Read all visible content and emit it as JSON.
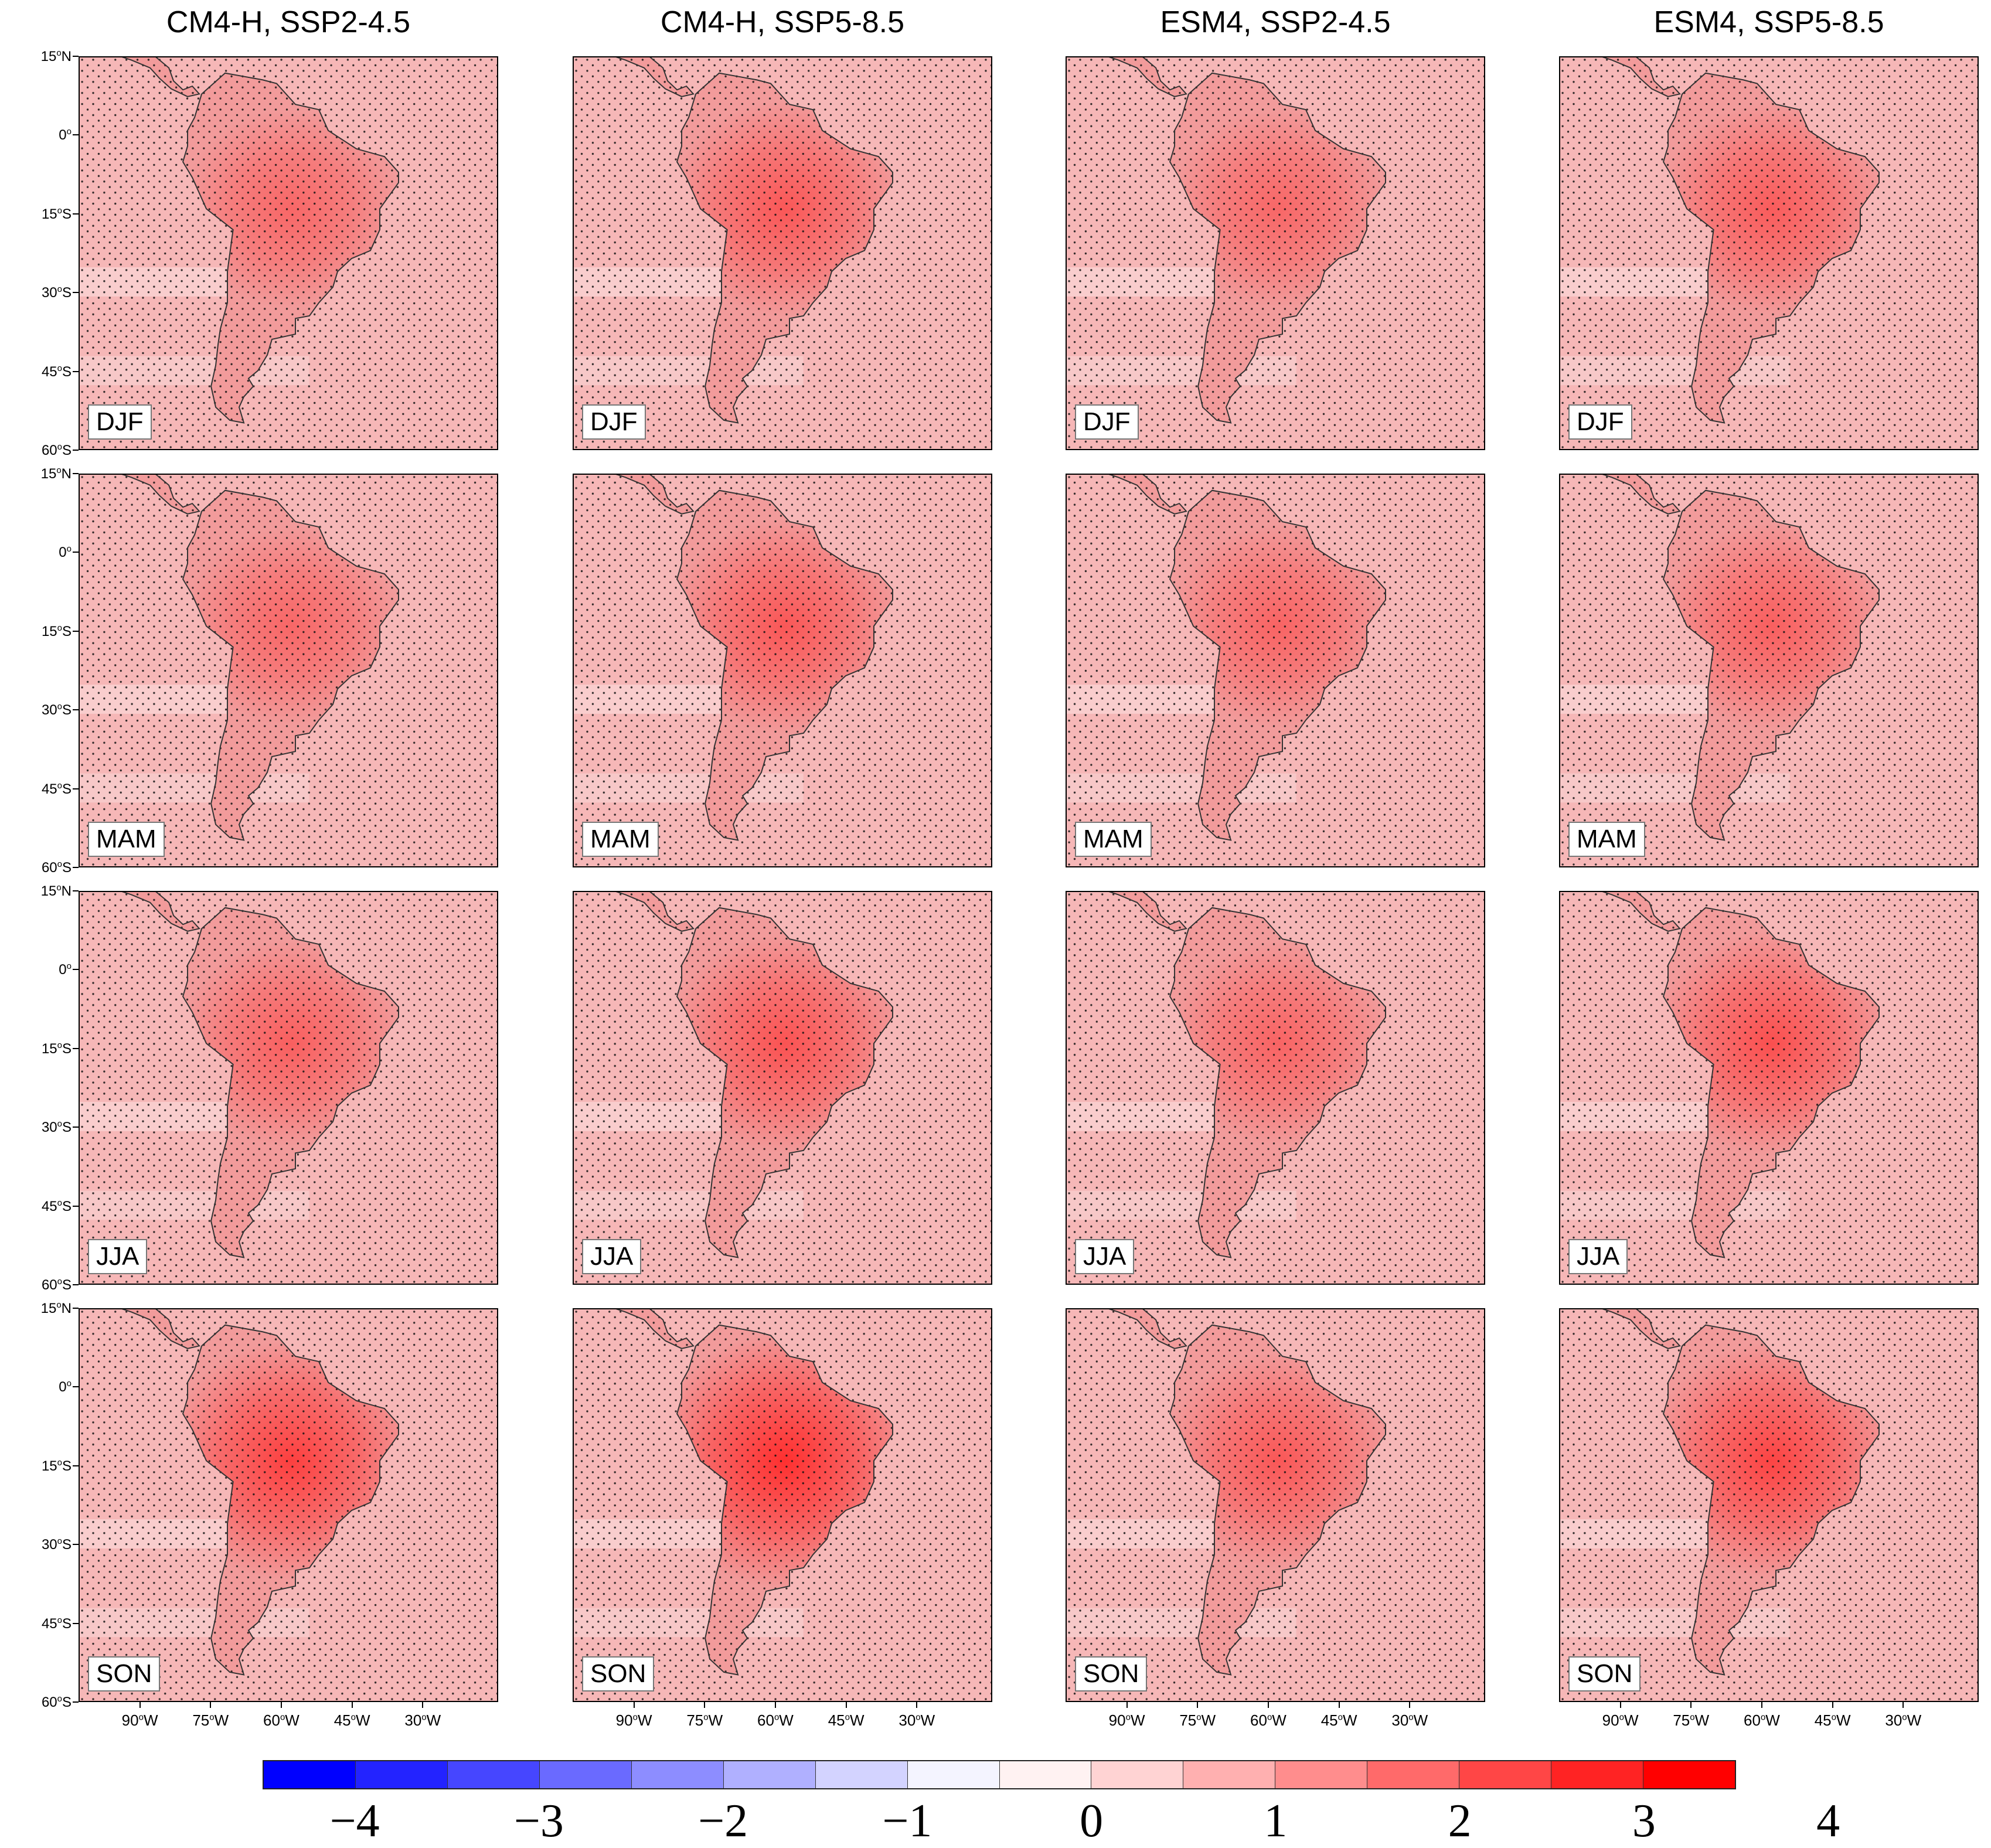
{
  "columns": [
    "CM4-H, SSP2-4.5",
    "CM4-H, SSP5-8.5",
    "ESM4, SSP2-4.5",
    "ESM4, SSP5-8.5"
  ],
  "seasons": [
    "DJF",
    "MAM",
    "JJA",
    "SON"
  ],
  "lat_ticks": [
    {
      "deg": "15",
      "hem": "N"
    },
    {
      "deg": "0",
      "hem": ""
    },
    {
      "deg": "15",
      "hem": "S"
    },
    {
      "deg": "30",
      "hem": "S"
    },
    {
      "deg": "45",
      "hem": "S"
    },
    {
      "deg": "60",
      "hem": "S"
    }
  ],
  "lon_ticks": [
    {
      "deg": "90",
      "hem": "W"
    },
    {
      "deg": "75",
      "hem": "W"
    },
    {
      "deg": "60",
      "hem": "W"
    },
    {
      "deg": "45",
      "hem": "W"
    },
    {
      "deg": "30",
      "hem": "W"
    }
  ],
  "colorbar": {
    "labels": [
      "−4",
      "−3",
      "−2",
      "−1",
      "0",
      "1",
      "2",
      "3",
      "4"
    ],
    "colors": [
      "#0000ff",
      "#2323ff",
      "#4646ff",
      "#6a6aff",
      "#8d8dff",
      "#b0b0ff",
      "#d3d3ff",
      "#f4f4ff",
      "#fff2f2",
      "#ffd3d3",
      "#ffb0b0",
      "#ff8d8d",
      "#ff6a6a",
      "#ff4646",
      "#ff2323",
      "#ff0000"
    ]
  },
  "map_data": {
    "domain": {
      "lon": [
        -103,
        -14
      ],
      "lat": [
        -60,
        15
      ]
    },
    "intensity": [
      [
        0.3,
        0.5,
        0.3,
        0.45
      ],
      [
        0.3,
        0.5,
        0.35,
        0.4
      ],
      [
        0.4,
        0.55,
        0.35,
        0.6
      ],
      [
        0.8,
        1.0,
        0.5,
        0.75
      ]
    ],
    "colors": {
      "background": "#f6b7b7",
      "land": "#f29b9b",
      "hotspot": "#ff2a2a",
      "coastline": "#333333",
      "stipple": "#111111"
    }
  }
}
